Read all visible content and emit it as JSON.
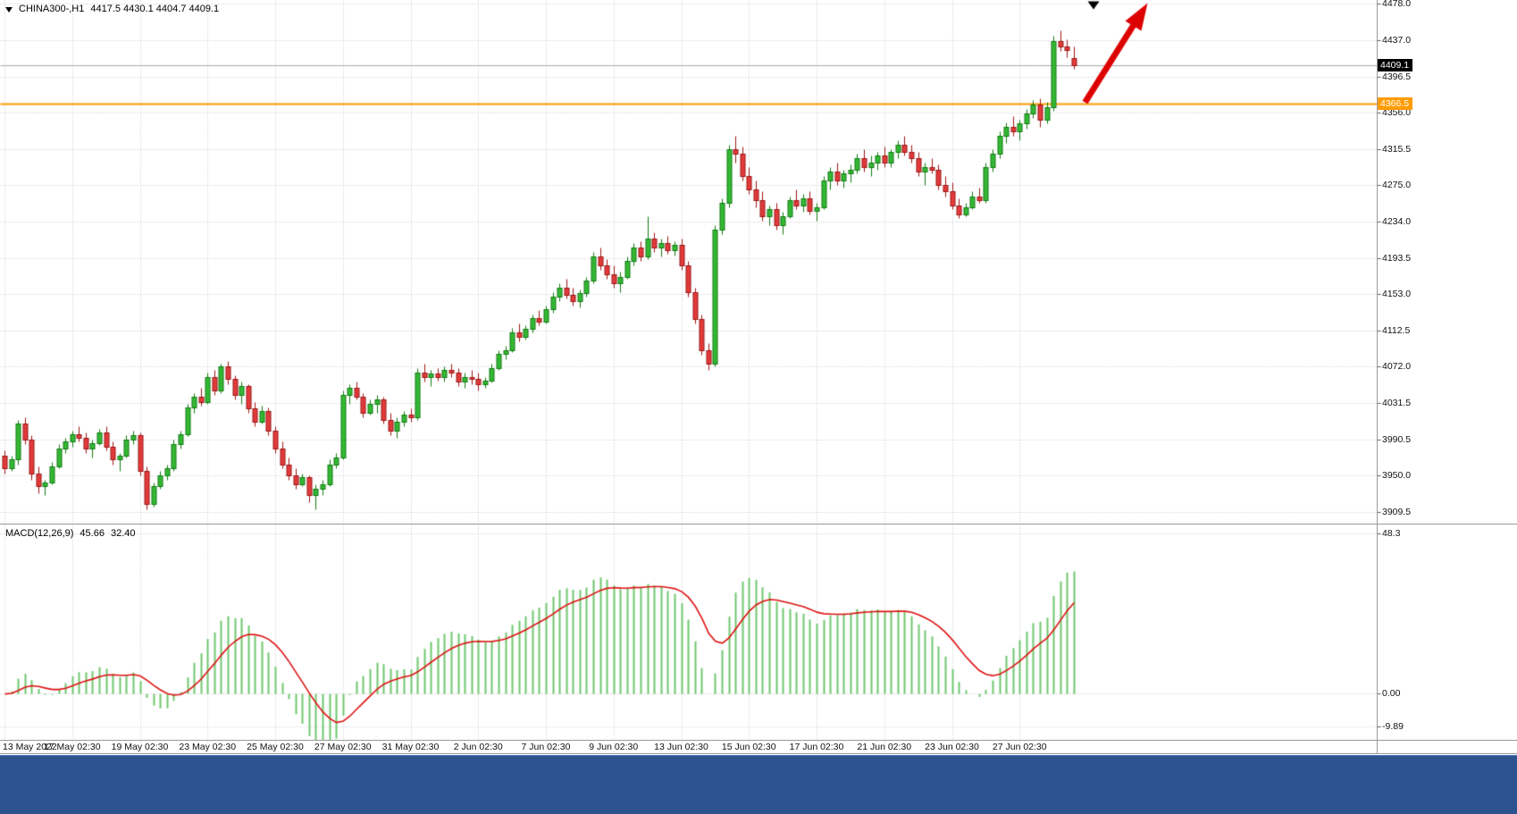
{
  "header": {
    "symbol": "CHINA300-,H1",
    "ohlc": "4417.5 4430.1 4404.7 4409.1"
  },
  "price_axis": {
    "current_tag": "4409.1",
    "hline_tag": "4366.5"
  },
  "macd": {
    "label": "MACD(12,26,9)",
    "value_main": "45.66",
    "value_signal": "32.40"
  },
  "chart_data": {
    "type": "candlestick",
    "title": "CHINA300- H1 with MACD(12,26,9)",
    "symbol": "CHINA300-",
    "timeframe": "H1",
    "last_price": 4409.1,
    "hline_price": 4366.5,
    "price_axis_range": [
      3896.5,
      4482.0
    ],
    "price_ticks": [
      4478.0,
      4437.0,
      4396.5,
      4356.0,
      4315.5,
      4275.0,
      4234.0,
      4193.5,
      4153.0,
      4112.5,
      4072.0,
      4031.5,
      3990.5,
      3950.0,
      3909.5
    ],
    "time_labels": [
      "13 May 2022",
      "17 May 02:30",
      "19 May 02:30",
      "23 May 02:30",
      "25 May 02:30",
      "27 May 02:30",
      "31 May 02:30",
      "2 Jun 02:30",
      "7 Jun 02:30",
      "9 Jun 02:30",
      "13 Jun 02:30",
      "15 Jun 02:30",
      "17 Jun 02:30",
      "21 Jun 02:30",
      "23 Jun 02:30",
      "27 Jun 02:30"
    ],
    "bars_per_label": 10,
    "ohlc": [
      [
        3972,
        3978,
        3952,
        3958
      ],
      [
        3958,
        3972,
        3955,
        3968
      ],
      [
        3968,
        4012,
        3962,
        4008
      ],
      [
        4008,
        4015,
        3985,
        3990
      ],
      [
        3990,
        3995,
        3945,
        3952
      ],
      [
        3952,
        3960,
        3930,
        3938
      ],
      [
        3938,
        3945,
        3928,
        3942
      ],
      [
        3942,
        3965,
        3940,
        3960
      ],
      [
        3960,
        3985,
        3958,
        3980
      ],
      [
        3980,
        3992,
        3975,
        3988
      ],
      [
        3988,
        4000,
        3982,
        3996
      ],
      [
        3996,
        4005,
        3988,
        3992
      ],
      [
        3992,
        3998,
        3975,
        3980
      ],
      [
        3980,
        3990,
        3970,
        3986
      ],
      [
        3986,
        4002,
        3984,
        3998
      ],
      [
        3998,
        4005,
        3978,
        3982
      ],
      [
        3982,
        3988,
        3962,
        3968
      ],
      [
        3968,
        3975,
        3955,
        3972
      ],
      [
        3972,
        3995,
        3970,
        3990
      ],
      [
        3990,
        4000,
        3985,
        3995
      ],
      [
        3995,
        3998,
        3950,
        3955
      ],
      [
        3955,
        3960,
        3912,
        3918
      ],
      [
        3918,
        3942,
        3915,
        3938
      ],
      [
        3938,
        3955,
        3935,
        3950
      ],
      [
        3950,
        3962,
        3945,
        3958
      ],
      [
        3958,
        3990,
        3955,
        3985
      ],
      [
        3985,
        4000,
        3980,
        3996
      ],
      [
        3996,
        4030,
        3994,
        4026
      ],
      [
        4026,
        4042,
        4020,
        4038
      ],
      [
        4038,
        4048,
        4028,
        4032
      ],
      [
        4032,
        4065,
        4030,
        4060
      ],
      [
        4060,
        4068,
        4040,
        4045
      ],
      [
        4045,
        4075,
        4042,
        4072
      ],
      [
        4072,
        4078,
        4052,
        4058
      ],
      [
        4058,
        4062,
        4035,
        4040
      ],
      [
        4040,
        4055,
        4030,
        4050
      ],
      [
        4050,
        4052,
        4020,
        4025
      ],
      [
        4025,
        4032,
        4005,
        4010
      ],
      [
        4010,
        4028,
        4008,
        4022
      ],
      [
        4022,
        4026,
        3995,
        4000
      ],
      [
        4000,
        4005,
        3975,
        3980
      ],
      [
        3980,
        3988,
        3958,
        3962
      ],
      [
        3962,
        3970,
        3945,
        3950
      ],
      [
        3950,
        3958,
        3935,
        3940
      ],
      [
        3940,
        3952,
        3938,
        3948
      ],
      [
        3948,
        3950,
        3920,
        3928
      ],
      [
        3928,
        3940,
        3912,
        3935
      ],
      [
        3935,
        3945,
        3928,
        3940
      ],
      [
        3940,
        3968,
        3938,
        3962
      ],
      [
        3962,
        3975,
        3958,
        3970
      ],
      [
        3970,
        4045,
        3968,
        4040
      ],
      [
        4040,
        4052,
        4030,
        4048
      ],
      [
        4048,
        4055,
        4035,
        4038
      ],
      [
        4038,
        4042,
        4015,
        4020
      ],
      [
        4020,
        4035,
        4018,
        4030
      ],
      [
        4030,
        4040,
        4020,
        4035
      ],
      [
        4035,
        4038,
        4008,
        4012
      ],
      [
        4012,
        4020,
        3995,
        4000
      ],
      [
        4000,
        4015,
        3992,
        4010
      ],
      [
        4010,
        4022,
        4005,
        4018
      ],
      [
        4018,
        4025,
        4010,
        4015
      ],
      [
        4015,
        4070,
        4012,
        4065
      ],
      [
        4065,
        4075,
        4055,
        4060
      ],
      [
        4060,
        4068,
        4050,
        4064
      ],
      [
        4064,
        4070,
        4056,
        4060
      ],
      [
        4060,
        4072,
        4055,
        4068
      ],
      [
        4068,
        4075,
        4060,
        4065
      ],
      [
        4065,
        4070,
        4050,
        4055
      ],
      [
        4055,
        4065,
        4048,
        4060
      ],
      [
        4060,
        4068,
        4052,
        4058
      ],
      [
        4058,
        4065,
        4045,
        4052
      ],
      [
        4052,
        4060,
        4048,
        4056
      ],
      [
        4056,
        4075,
        4054,
        4070
      ],
      [
        4070,
        4090,
        4068,
        4086
      ],
      [
        4086,
        4095,
        4080,
        4090
      ],
      [
        4090,
        4115,
        4088,
        4110
      ],
      [
        4110,
        4120,
        4100,
        4105
      ],
      [
        4105,
        4118,
        4102,
        4114
      ],
      [
        4114,
        4130,
        4110,
        4126
      ],
      [
        4126,
        4135,
        4118,
        4122
      ],
      [
        4122,
        4140,
        4120,
        4136
      ],
      [
        4136,
        4155,
        4132,
        4150
      ],
      [
        4150,
        4165,
        4145,
        4160
      ],
      [
        4160,
        4170,
        4148,
        4152
      ],
      [
        4152,
        4160,
        4140,
        4145
      ],
      [
        4145,
        4158,
        4138,
        4154
      ],
      [
        4154,
        4172,
        4150,
        4168
      ],
      [
        4168,
        4200,
        4165,
        4195
      ],
      [
        4195,
        4205,
        4180,
        4185
      ],
      [
        4185,
        4192,
        4170,
        4175
      ],
      [
        4175,
        4185,
        4160,
        4165
      ],
      [
        4165,
        4178,
        4155,
        4172
      ],
      [
        4172,
        4195,
        4170,
        4190
      ],
      [
        4190,
        4210,
        4185,
        4205
      ],
      [
        4205,
        4212,
        4190,
        4195
      ],
      [
        4195,
        4240,
        4192,
        4215
      ],
      [
        4215,
        4222,
        4200,
        4205
      ],
      [
        4205,
        4215,
        4195,
        4210
      ],
      [
        4210,
        4218,
        4198,
        4202
      ],
      [
        4202,
        4212,
        4196,
        4208
      ],
      [
        4208,
        4215,
        4180,
        4185
      ],
      [
        4185,
        4190,
        4150,
        4155
      ],
      [
        4155,
        4160,
        4120,
        4125
      ],
      [
        4125,
        4130,
        4085,
        4090
      ],
      [
        4090,
        4098,
        4068,
        4075
      ],
      [
        4075,
        4230,
        4072,
        4225
      ],
      [
        4225,
        4260,
        4220,
        4255
      ],
      [
        4255,
        4320,
        4250,
        4315
      ],
      [
        4315,
        4330,
        4300,
        4310
      ],
      [
        4310,
        4318,
        4280,
        4285
      ],
      [
        4285,
        4295,
        4265,
        4270
      ],
      [
        4270,
        4280,
        4250,
        4258
      ],
      [
        4258,
        4268,
        4235,
        4240
      ],
      [
        4240,
        4252,
        4230,
        4248
      ],
      [
        4248,
        4255,
        4225,
        4230
      ],
      [
        4230,
        4245,
        4220,
        4240
      ],
      [
        4240,
        4262,
        4238,
        4258
      ],
      [
        4258,
        4270,
        4248,
        4252
      ],
      [
        4252,
        4265,
        4245,
        4260
      ],
      [
        4260,
        4268,
        4242,
        4246
      ],
      [
        4246,
        4255,
        4235,
        4250
      ],
      [
        4250,
        4285,
        4248,
        4280
      ],
      [
        4280,
        4295,
        4270,
        4290
      ],
      [
        4290,
        4300,
        4275,
        4280
      ],
      [
        4280,
        4292,
        4272,
        4288
      ],
      [
        4288,
        4298,
        4278,
        4292
      ],
      [
        4292,
        4310,
        4288,
        4305
      ],
      [
        4305,
        4315,
        4290,
        4295
      ],
      [
        4295,
        4308,
        4285,
        4300
      ],
      [
        4300,
        4312,
        4292,
        4308
      ],
      [
        4308,
        4318,
        4295,
        4300
      ],
      [
        4300,
        4315,
        4295,
        4312
      ],
      [
        4312,
        4325,
        4305,
        4320
      ],
      [
        4320,
        4330,
        4308,
        4312
      ],
      [
        4312,
        4320,
        4300,
        4305
      ],
      [
        4305,
        4312,
        4285,
        4290
      ],
      [
        4290,
        4300,
        4275,
        4295
      ],
      [
        4295,
        4305,
        4288,
        4292
      ],
      [
        4292,
        4298,
        4270,
        4275
      ],
      [
        4275,
        4285,
        4262,
        4268
      ],
      [
        4268,
        4278,
        4248,
        4252
      ],
      [
        4252,
        4260,
        4238,
        4242
      ],
      [
        4242,
        4255,
        4240,
        4250
      ],
      [
        4250,
        4268,
        4248,
        4262
      ],
      [
        4262,
        4272,
        4255,
        4258
      ],
      [
        4258,
        4300,
        4255,
        4295
      ],
      [
        4295,
        4315,
        4290,
        4310
      ],
      [
        4310,
        4335,
        4305,
        4330
      ],
      [
        4330,
        4345,
        4322,
        4340
      ],
      [
        4340,
        4352,
        4330,
        4335
      ],
      [
        4335,
        4348,
        4325,
        4344
      ],
      [
        4344,
        4360,
        4338,
        4355
      ],
      [
        4355,
        4370,
        4350,
        4365
      ],
      [
        4365,
        4372,
        4340,
        4348
      ],
      [
        4348,
        4368,
        4344,
        4362
      ],
      [
        4362,
        4442,
        4358,
        4436
      ],
      [
        4436,
        4448,
        4425,
        4430
      ],
      [
        4430,
        4438,
        4418,
        4426
      ],
      [
        4417.5,
        4430.1,
        4404.7,
        4409.1
      ]
    ],
    "indicator": {
      "name": "MACD",
      "params": [
        12,
        26,
        9
      ],
      "display_main": "45.66",
      "display_signal": "32.40",
      "ticks": [
        {
          "v": 48.3,
          "label": "48.3"
        },
        {
          "v": 0,
          "label": "0.00"
        },
        {
          "v": -9.89,
          "label": "-9.89"
        }
      ],
      "range": [
        -14,
        50.8
      ]
    },
    "colors": {
      "bull_fill": "#35b835",
      "bull_border": "#117a11",
      "bear_fill": "#e23b3b",
      "bear_border": "#9c1414",
      "grid": "#c6c6c6",
      "hline": "#ff9c00",
      "current_price_line": "#a8a8a8",
      "tag_black_bg": "#000000",
      "macd_hist": "#6fc76f",
      "macd_signal": "#dd1212",
      "trend_arrow": "#dd0000",
      "taskbar": "#2d5290"
    }
  }
}
